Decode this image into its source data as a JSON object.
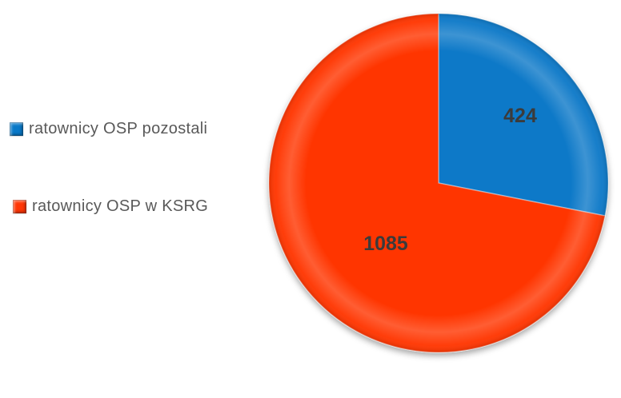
{
  "background_color": "#ffffff",
  "chart_data": {
    "type": "pie",
    "title": "",
    "categories": [
      "ratownicy OSP pozostali",
      "ratownicy OSP w KSRG"
    ],
    "values": [
      424,
      1085
    ],
    "colors": [
      "#0979c8",
      "#ff3605"
    ],
    "data_labels": [
      "424",
      "1085"
    ],
    "data_label_color": "#3b3b3b",
    "legend_position": "left",
    "legend_text_color": "#595959",
    "start_angle_deg": 0,
    "direction": "clockwise",
    "style": "3d-bevel-with-shadow"
  },
  "legend": {
    "items": [
      {
        "label": "ratownicy OSP pozostali",
        "color": "#0979c8"
      },
      {
        "label": "ratownicy OSP w KSRG",
        "color": "#ff3605"
      }
    ]
  }
}
